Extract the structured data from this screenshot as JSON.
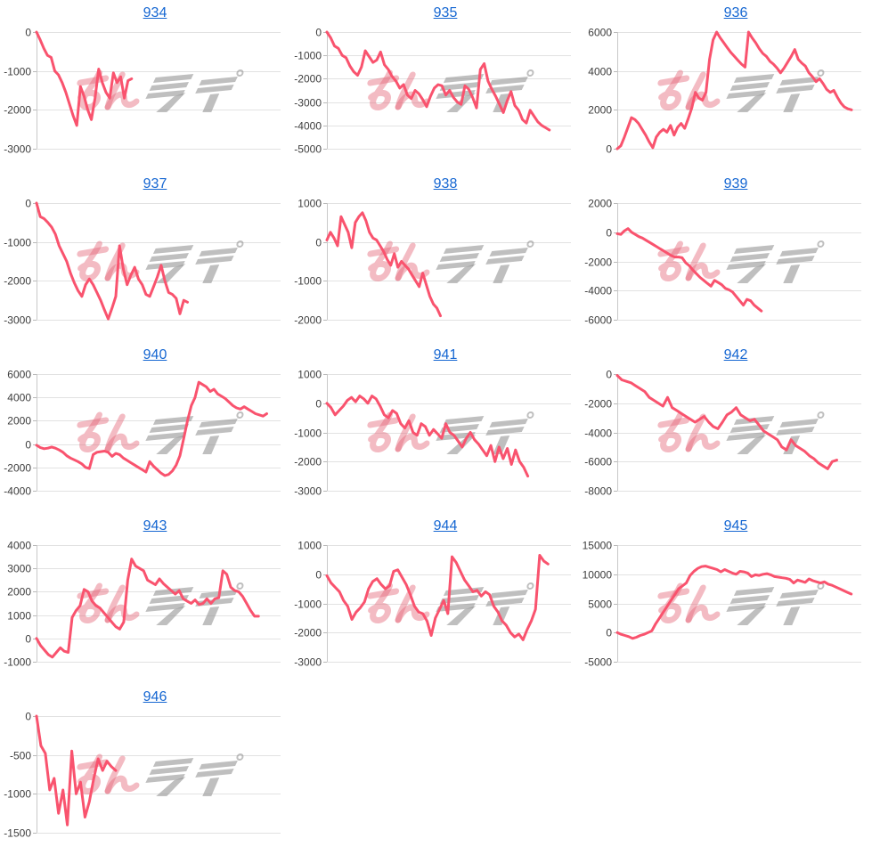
{
  "ui": {
    "title_link_color": "#1667d2",
    "line_color": "#f9536e",
    "grid_color": "#e2e2e2",
    "axis_color": "#c9c9c9",
    "tick_color": "#b9b9b9",
    "label_color": "#3d3d3d",
    "background": "#ffffff",
    "watermark": {
      "pink_text": "みん",
      "gray_text": "レポ",
      "pink": "rgba(229,104,122,0.45)",
      "gray": "rgba(148,148,148,0.60)"
    }
  },
  "chart_data": [
    {
      "type": "line",
      "title": "934",
      "y_ticks": [
        0,
        -1000,
        -2000,
        -3000
      ],
      "ylim": [
        -3000,
        0
      ],
      "slots": 66,
      "values": [
        0,
        -200,
        -420,
        -600,
        -650,
        -1000,
        -1100,
        -1300,
        -1550,
        -1850,
        -2150,
        -2400,
        -1400,
        -1650,
        -2000,
        -2250,
        -1700,
        -950,
        -1300,
        -1550,
        -1700,
        -1050,
        -1300,
        -1150,
        -1700,
        -1250,
        -1200
      ]
    },
    {
      "type": "line",
      "title": "935",
      "y_ticks": [
        0,
        -1000,
        -2000,
        -3000,
        -4000,
        -5000
      ],
      "ylim": [
        -5000,
        0
      ],
      "slots": 63,
      "values": [
        0,
        -250,
        -600,
        -700,
        -1000,
        -1100,
        -1450,
        -1700,
        -1850,
        -1500,
        -800,
        -1050,
        -1300,
        -1200,
        -850,
        -1400,
        -1600,
        -1900,
        -2100,
        -2400,
        -2250,
        -2700,
        -2850,
        -2500,
        -2650,
        -2900,
        -3200,
        -2750,
        -2400,
        -2250,
        -2300,
        -2700,
        -2500,
        -2800,
        -3000,
        -3100,
        -2300,
        -2450,
        -2800,
        -3250,
        -1600,
        -1350,
        -2100,
        -2450,
        -2750,
        -3100,
        -3450,
        -2950,
        -2550,
        -3150,
        -3350,
        -3750,
        -3900,
        -3350,
        -3600,
        -3850,
        -4000,
        -4100,
        -4200
      ]
    },
    {
      "type": "line",
      "title": "936",
      "y_ticks": [
        6000,
        4000,
        2000,
        0
      ],
      "ylim": [
        0,
        6000
      ],
      "slots": 68,
      "values": [
        0,
        150,
        600,
        1100,
        1600,
        1500,
        1300,
        1000,
        700,
        350,
        50,
        600,
        850,
        1000,
        850,
        1200,
        700,
        1100,
        1300,
        1050,
        1550,
        2100,
        2900,
        2600,
        2500,
        2900,
        4600,
        5600,
        6000,
        5700,
        5450,
        5200,
        4950,
        4750,
        4550,
        4350,
        4200,
        6000,
        5700,
        5450,
        5150,
        4900,
        4750,
        4500,
        4350,
        4150,
        3900,
        4150,
        4450,
        4750,
        5100,
        4600,
        4400,
        4250,
        3900,
        3700,
        3450,
        3600,
        3350,
        3050,
        2900,
        3000,
        2650,
        2350,
        2150,
        2050,
        2000
      ]
    },
    {
      "type": "line",
      "title": "937",
      "y_ticks": [
        0,
        -1000,
        -2000,
        -3000
      ],
      "ylim": [
        -3000,
        0
      ],
      "slots": 64,
      "values": [
        0,
        -350,
        -400,
        -500,
        -620,
        -800,
        -1100,
        -1300,
        -1500,
        -1800,
        -2050,
        -2250,
        -2400,
        -2100,
        -1950,
        -2100,
        -2300,
        -2500,
        -2750,
        -2980,
        -2700,
        -2400,
        -1100,
        -1700,
        -2100,
        -1850,
        -1650,
        -1950,
        -2100,
        -2350,
        -2400,
        -2150,
        -1900,
        -1600,
        -2000,
        -2300,
        -2350,
        -2450,
        -2850,
        -2500,
        -2550
      ]
    },
    {
      "type": "line",
      "title": "938",
      "y_ticks": [
        1000,
        0,
        -1000,
        -2000
      ],
      "ylim": [
        -2000,
        1000
      ],
      "slots": 68,
      "values": [
        50,
        250,
        100,
        -100,
        650,
        450,
        250,
        -150,
        500,
        650,
        750,
        550,
        250,
        100,
        50,
        -100,
        -250,
        -450,
        -600,
        -300,
        -650,
        -500,
        -600,
        -700,
        -850,
        -1000,
        -1150,
        -800,
        -1100,
        -1400,
        -1600,
        -1700,
        -1900
      ]
    },
    {
      "type": "line",
      "title": "939",
      "y_ticks": [
        2000,
        0,
        -2000,
        -4000,
        -6000
      ],
      "ylim": [
        -6000,
        2000
      ],
      "slots": 67,
      "values": [
        -100,
        -150,
        100,
        250,
        0,
        -150,
        -300,
        -400,
        -550,
        -700,
        -850,
        -1000,
        -1150,
        -1300,
        -1450,
        -1600,
        -1700,
        -1700,
        -1750,
        -2100,
        -2300,
        -2600,
        -2850,
        -3100,
        -3300,
        -3500,
        -3700,
        -3300,
        -3450,
        -3600,
        -3850,
        -3950,
        -4100,
        -4400,
        -4700,
        -5000,
        -4600,
        -4700,
        -5000,
        -5200,
        -5400
      ]
    },
    {
      "type": "line",
      "title": "940",
      "y_ticks": [
        6000,
        4000,
        2000,
        0,
        -2000,
        -4000
      ],
      "ylim": [
        -4000,
        6000
      ],
      "slots": 64,
      "values": [
        -100,
        -300,
        -400,
        -350,
        -250,
        -350,
        -500,
        -700,
        -1000,
        -1200,
        -1350,
        -1500,
        -1700,
        -2000,
        -2100,
        -900,
        -700,
        -650,
        -600,
        -700,
        -1050,
        -800,
        -900,
        -1200,
        -1400,
        -1600,
        -1800,
        -2000,
        -2200,
        -2400,
        -1500,
        -1900,
        -2200,
        -2500,
        -2700,
        -2600,
        -2300,
        -1800,
        -1000,
        500,
        2000,
        3300,
        4000,
        5300,
        5100,
        4900,
        4500,
        4700,
        4300,
        4100,
        3900,
        3600,
        3300,
        3100,
        3000,
        3200,
        3000,
        2800,
        2600,
        2500,
        2400,
        2600
      ]
    },
    {
      "type": "line",
      "title": "941",
      "y_ticks": [
        1000,
        0,
        -1000,
        -2000,
        -3000
      ],
      "ylim": [
        -3000,
        1000
      ],
      "slots": 59,
      "values": [
        0,
        -150,
        -400,
        -250,
        -100,
        100,
        200,
        50,
        250,
        150,
        0,
        250,
        150,
        -100,
        -400,
        -500,
        -250,
        -350,
        -700,
        -850,
        -600,
        -1000,
        -1100,
        -700,
        -800,
        -1100,
        -900,
        -1050,
        -1200,
        -700,
        -1000,
        -1100,
        -1300,
        -1500,
        -1200,
        -1000,
        -1250,
        -1400,
        -1600,
        -1800,
        -1450,
        -2000,
        -1500,
        -1900,
        -1550,
        -2100,
        -1600,
        -2000,
        -2200,
        -2500
      ]
    },
    {
      "type": "line",
      "title": "942",
      "y_ticks": [
        0,
        -2000,
        -4000,
        -6000,
        -8000
      ],
      "ylim": [
        -8000,
        0
      ],
      "slots": 53,
      "values": [
        -100,
        -400,
        -500,
        -600,
        -800,
        -1000,
        -1200,
        -1600,
        -1800,
        -2000,
        -2200,
        -1600,
        -2300,
        -2500,
        -2700,
        -2900,
        -3100,
        -3300,
        -3100,
        -2900,
        -3300,
        -3600,
        -3750,
        -3300,
        -2800,
        -2600,
        -2300,
        -2800,
        -3000,
        -3200,
        -3100,
        -3500,
        -3900,
        -4100,
        -4300,
        -4500,
        -5000,
        -5200,
        -4500,
        -4900,
        -5100,
        -5300,
        -5600,
        -5800,
        -6100,
        -6300,
        -6500,
        -6000,
        -5900
      ]
    },
    {
      "type": "line",
      "title": "943",
      "y_ticks": [
        4000,
        3000,
        2000,
        1000,
        0,
        -1000
      ],
      "ylim": [
        -1000,
        4000
      ],
      "slots": 61,
      "values": [
        0,
        -300,
        -500,
        -700,
        -800,
        -600,
        -400,
        -550,
        -600,
        900,
        1200,
        1400,
        2100,
        2000,
        1600,
        1400,
        1300,
        1100,
        900,
        700,
        500,
        400,
        700,
        2500,
        3400,
        3100,
        3000,
        2900,
        2500,
        2400,
        2300,
        2550,
        2350,
        2200,
        2050,
        1900,
        2050,
        1700,
        1600,
        1500,
        1650,
        1450,
        1500,
        1700,
        1500,
        1700,
        1750,
        2900,
        2750,
        2200,
        2050,
        2000,
        1800,
        1500,
        1200,
        950,
        950
      ]
    },
    {
      "type": "line",
      "title": "944",
      "y_ticks": [
        1000,
        0,
        -1000,
        -2000,
        -3000
      ],
      "ylim": [
        -3000,
        1000
      ],
      "slots": 58,
      "values": [
        -50,
        -300,
        -450,
        -600,
        -900,
        -1100,
        -1550,
        -1300,
        -1150,
        -950,
        -500,
        -250,
        -150,
        -350,
        -500,
        -400,
        100,
        150,
        -100,
        -350,
        -700,
        -1100,
        -1300,
        -1350,
        -1600,
        -2100,
        -1500,
        -1200,
        -900,
        -1350,
        600,
        400,
        100,
        -200,
        -400,
        -600,
        -550,
        -750,
        -600,
        -700,
        -1100,
        -1300,
        -1600,
        -1750,
        -2000,
        -2150,
        -2050,
        -2250,
        -1900,
        -1600,
        -1200,
        650,
        450,
        350
      ]
    },
    {
      "type": "line",
      "title": "945",
      "y_ticks": [
        15000,
        10000,
        5000,
        0,
        -5000
      ],
      "ylim": [
        -5000,
        15000
      ],
      "slots": 63,
      "values": [
        0,
        -300,
        -500,
        -700,
        -1000,
        -800,
        -500,
        -300,
        0,
        300,
        1500,
        2500,
        3500,
        4500,
        5500,
        6500,
        7500,
        8000,
        8500,
        9800,
        10500,
        11000,
        11300,
        11400,
        11200,
        11000,
        10800,
        10400,
        10800,
        10500,
        10200,
        10000,
        10500,
        10400,
        10200,
        9600,
        9900,
        9800,
        10000,
        10100,
        9900,
        9600,
        9500,
        9400,
        9300,
        9100,
        8500,
        9000,
        8800,
        8600,
        9200,
        8900,
        8700,
        8500,
        8700,
        8300,
        8100,
        7800,
        7500,
        7200,
        6900,
        6600
      ]
    },
    {
      "type": "line",
      "title": "946",
      "y_ticks": [
        0,
        -500,
        -1000,
        -1500
      ],
      "ylim": [
        -1500,
        0
      ],
      "slots": 55,
      "values": [
        0,
        -380,
        -480,
        -950,
        -800,
        -1250,
        -950,
        -1400,
        -450,
        -1000,
        -850,
        -1300,
        -1100,
        -800,
        -550,
        -700,
        -580,
        -650,
        -700
      ]
    }
  ]
}
